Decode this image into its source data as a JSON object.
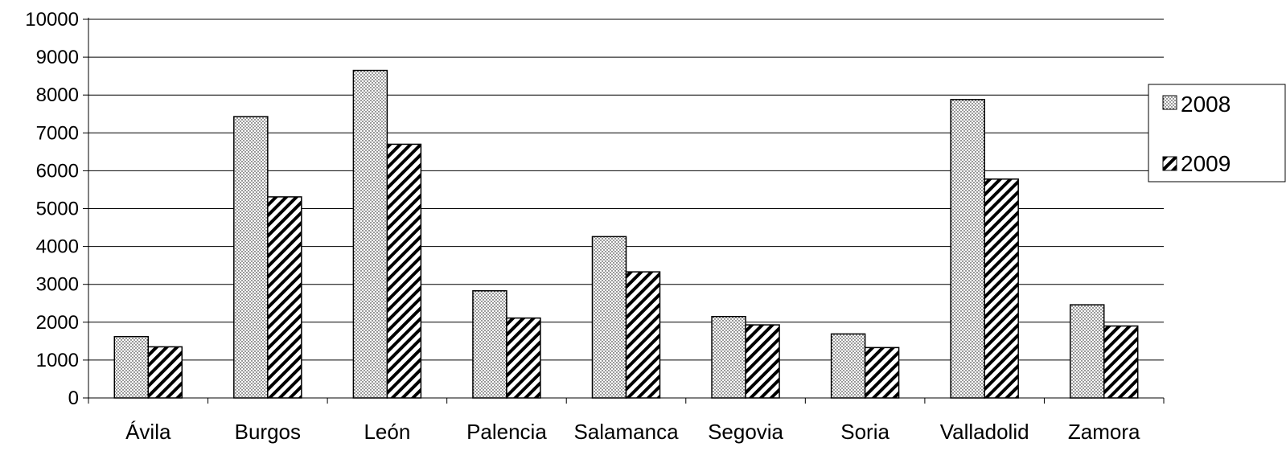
{
  "chart_data": {
    "type": "bar",
    "title": "",
    "xlabel": "",
    "ylabel": "",
    "ylim": [
      0,
      10000
    ],
    "yticks": [
      0,
      1000,
      2000,
      3000,
      4000,
      5000,
      6000,
      7000,
      8000,
      9000,
      10000
    ],
    "grid": "horizontal",
    "legend_position": "right",
    "categories": [
      "Ávila",
      "Burgos",
      "León",
      "Palencia",
      "Salamanca",
      "Segovia",
      "Soria",
      "Valladolid",
      "Zamora"
    ],
    "series": [
      {
        "name": "2008",
        "pattern": "dots",
        "values": [
          1620,
          7430,
          8650,
          2830,
          4260,
          2150,
          1690,
          7880,
          2460
        ]
      },
      {
        "name": "2009",
        "pattern": "diagonal-hatch",
        "values": [
          1350,
          5310,
          6700,
          2110,
          3330,
          1930,
          1330,
          5780,
          1900
        ]
      }
    ]
  }
}
